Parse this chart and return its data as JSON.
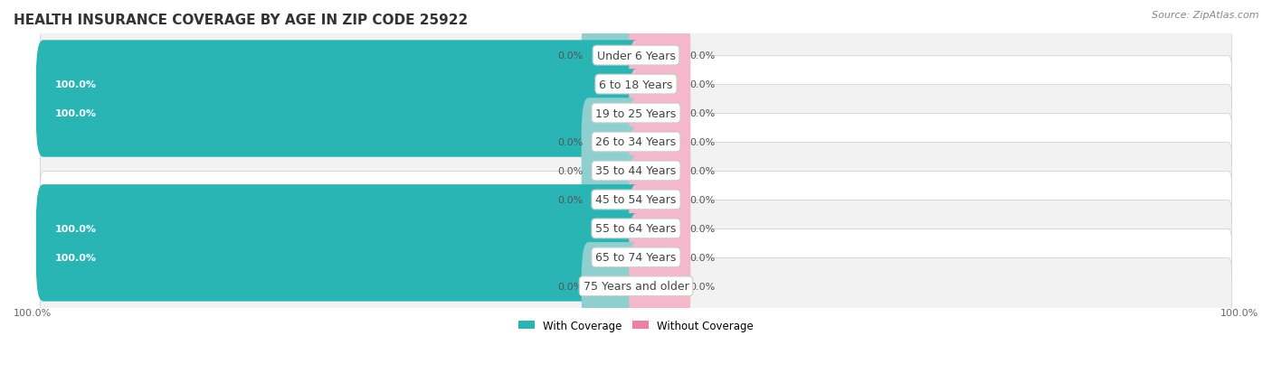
{
  "title": "HEALTH INSURANCE COVERAGE BY AGE IN ZIP CODE 25922",
  "source": "Source: ZipAtlas.com",
  "categories": [
    "Under 6 Years",
    "6 to 18 Years",
    "19 to 25 Years",
    "26 to 34 Years",
    "35 to 44 Years",
    "45 to 54 Years",
    "55 to 64 Years",
    "65 to 74 Years",
    "75 Years and older"
  ],
  "with_coverage": [
    0.0,
    100.0,
    100.0,
    0.0,
    0.0,
    0.0,
    100.0,
    100.0,
    0.0
  ],
  "without_coverage": [
    0.0,
    0.0,
    0.0,
    0.0,
    0.0,
    0.0,
    0.0,
    0.0,
    0.0
  ],
  "color_with_full": "#2ab5b5",
  "color_with_empty": "#8ecfcf",
  "color_without_full": "#f080a0",
  "color_without_empty": "#f5b8cb",
  "row_colors": [
    "#f2f2f2",
    "#ffffff"
  ],
  "title_fontsize": 11,
  "bar_label_fontsize": 8,
  "cat_label_fontsize": 9,
  "legend_fontsize": 8.5,
  "source_fontsize": 8
}
